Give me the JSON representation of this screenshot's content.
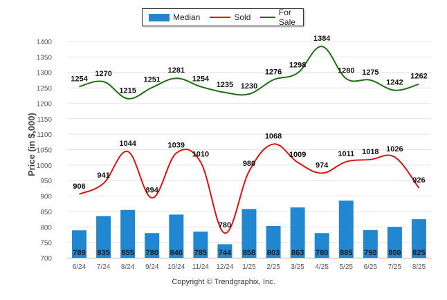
{
  "legend": {
    "median": "Median",
    "sold": "Sold",
    "for_sale": "For Sale"
  },
  "colors": {
    "median": "#2187d0",
    "sold": "#e01010",
    "for_sale": "#1f6e12",
    "grid": "#e4e4e4",
    "axis_text": "#555555"
  },
  "copyright": "Copyright © Trendgraphix, Inc.",
  "chart_data": {
    "type": "bar",
    "ylabel": "Price (in $,000)",
    "ylim": [
      700,
      1400
    ],
    "yticks": [
      700,
      750,
      800,
      850,
      900,
      950,
      1000,
      1050,
      1100,
      1150,
      1200,
      1250,
      1300,
      1350,
      1400
    ],
    "grid": true,
    "legend_position": "top",
    "categories": [
      "6/24",
      "7/24",
      "8/24",
      "9/24",
      "10/24",
      "11/24",
      "12/24",
      "1/25",
      "2/25",
      "3/25",
      "4/25",
      "5/25",
      "6/25",
      "7/25",
      "8/25"
    ],
    "series": [
      {
        "name": "Median",
        "kind": "bar",
        "values": [
          789,
          835,
          855,
          780,
          840,
          785,
          744,
          858,
          803,
          863,
          780,
          885,
          790,
          800,
          825
        ]
      },
      {
        "name": "Sold",
        "kind": "line",
        "values": [
          906,
          941,
          1044,
          894,
          1039,
          1010,
          780,
          980,
          1068,
          1009,
          974,
          1011,
          1018,
          1026,
          926
        ]
      },
      {
        "name": "For Sale",
        "kind": "line",
        "values": [
          1254,
          1270,
          1215,
          1251,
          1281,
          1254,
          1235,
          1230,
          1276,
          1298,
          1384,
          1280,
          1275,
          1242,
          1262
        ]
      }
    ]
  }
}
